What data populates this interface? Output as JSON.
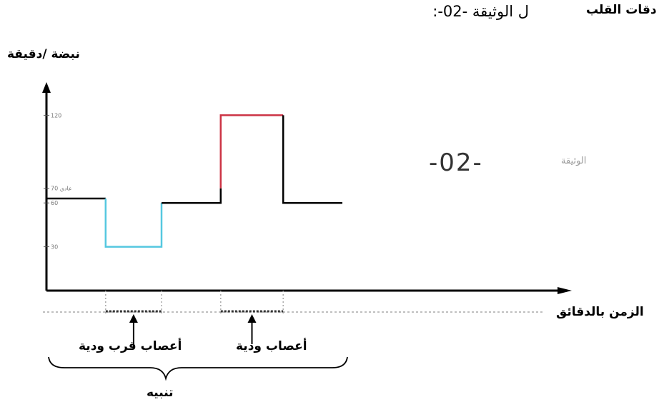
{
  "document_caption": "ل الوثيقة -02-:",
  "heart_title": "دقات القلب",
  "y_axis_label": "نبضة /دقيقة",
  "x_axis_label": "الزمن بالدقائق",
  "figure_code": "-02-",
  "figure_code_label": "الوثيقة",
  "annotations": {
    "sympathetic": "أعصاب ودية",
    "parasympathetic": "أعصاب قرب ودية",
    "stimulation": "تنبيه"
  },
  "colors": {
    "normal": "#000000",
    "parasympathetic": "#55c8e0",
    "sympathetic": "#cc3344",
    "dotted": "#999999"
  },
  "chart_data": {
    "type": "line",
    "title": "",
    "xlabel": "الزمن بالدقائق",
    "ylabel": "نبضة /دقيقة",
    "yticks": [
      {
        "value": 30,
        "label": "30"
      },
      {
        "value": 60,
        "label": "60"
      },
      {
        "value": 70,
        "label": "عادي 70"
      },
      {
        "value": 120,
        "label": "120"
      }
    ],
    "ylim": [
      0,
      150
    ],
    "xlim": [
      0,
      15
    ],
    "series": [
      {
        "segment": "normal-1",
        "color": "#000000",
        "points": [
          [
            0,
            63
          ],
          [
            1.8,
            63
          ]
        ]
      },
      {
        "segment": "parasympathetic",
        "color": "#55c8e0",
        "points": [
          [
            1.8,
            63
          ],
          [
            1.8,
            30
          ],
          [
            3.5,
            30
          ],
          [
            3.5,
            60
          ]
        ]
      },
      {
        "segment": "normal-2",
        "color": "#000000",
        "points": [
          [
            3.5,
            60
          ],
          [
            5.3,
            60
          ],
          [
            5.3,
            70
          ]
        ]
      },
      {
        "segment": "sympathetic",
        "color": "#cc3344",
        "points": [
          [
            5.3,
            70
          ],
          [
            5.3,
            120
          ],
          [
            7.2,
            120
          ]
        ]
      },
      {
        "segment": "normal-3",
        "color": "#000000",
        "points": [
          [
            7.2,
            120
          ],
          [
            7.2,
            60
          ],
          [
            9.0,
            60
          ]
        ]
      }
    ],
    "stimulation_periods": [
      {
        "name": "أعصاب قرب ودية",
        "x_start": 1.8,
        "x_end": 3.5
      },
      {
        "name": "أعصاب ودية",
        "x_start": 5.3,
        "x_end": 7.2
      }
    ]
  }
}
